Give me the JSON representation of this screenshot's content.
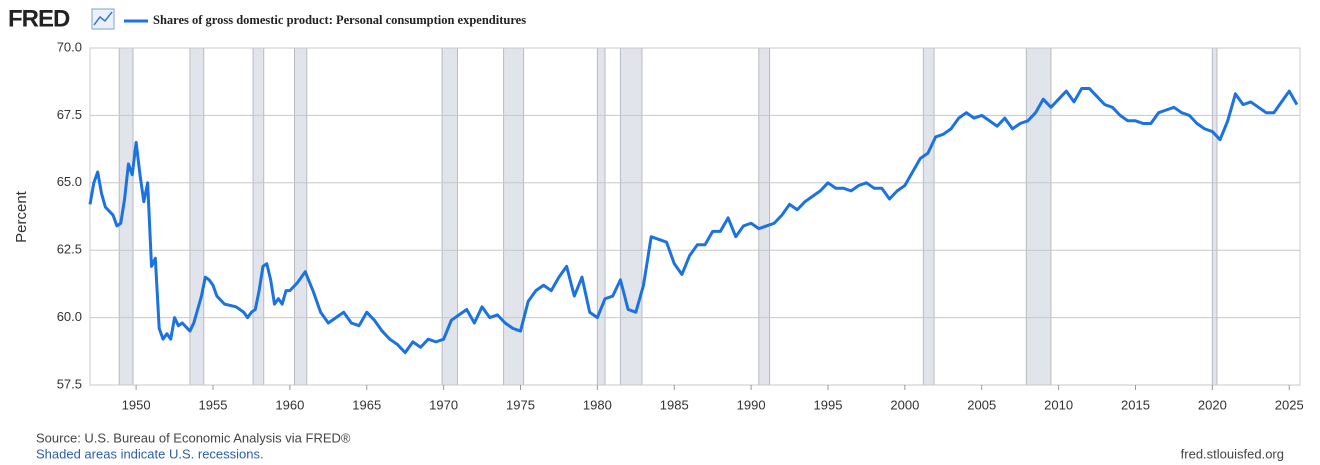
{
  "logo": "FRED",
  "chart_data": {
    "type": "line",
    "series": [
      {
        "name": "Shares of gross domestic product: Personal consumption expenditures",
        "color": "#1c72e0",
        "x": [
          1947,
          1947.25,
          1947.5,
          1947.75,
          1948,
          1948.5,
          1948.75,
          1949,
          1949.25,
          1949.5,
          1949.75,
          1950,
          1950.25,
          1950.5,
          1950.75,
          1951,
          1951.25,
          1951.5,
          1951.75,
          1952,
          1952.25,
          1952.5,
          1952.75,
          1953,
          1953.5,
          1953.75,
          1954.25,
          1954.5,
          1954.75,
          1955,
          1955.25,
          1955.75,
          1956.5,
          1957,
          1957.25,
          1957.5,
          1957.75,
          1958,
          1958.25,
          1958.5,
          1958.75,
          1959,
          1959.25,
          1959.5,
          1959.75,
          1960,
          1960.5,
          1961,
          1961.5,
          1962,
          1962.5,
          1963,
          1963.5,
          1964,
          1964.5,
          1965,
          1965.5,
          1966,
          1966.5,
          1967,
          1967.5,
          1968,
          1968.5,
          1969,
          1969.5,
          1970,
          1970.5,
          1971,
          1971.5,
          1972,
          1972.5,
          1973,
          1973.5,
          1974,
          1974.5,
          1975,
          1975.5,
          1976,
          1976.5,
          1977,
          1977.5,
          1978,
          1978.5,
          1979,
          1979.5,
          1980,
          1980.5,
          1981,
          1981.5,
          1982,
          1982.5,
          1983,
          1983.5,
          1984,
          1984.5,
          1985,
          1985.5,
          1986,
          1986.5,
          1987,
          1987.5,
          1988,
          1988.5,
          1989,
          1989.5,
          1990,
          1990.5,
          1991,
          1991.5,
          1992,
          1992.5,
          1993,
          1993.5,
          1994,
          1994.5,
          1995,
          1995.5,
          1996,
          1996.5,
          1997,
          1997.5,
          1998,
          1998.5,
          1999,
          1999.5,
          2000,
          2000.5,
          2001,
          2001.5,
          2002,
          2002.5,
          2003,
          2003.5,
          2004,
          2004.5,
          2005,
          2005.5,
          2006,
          2006.5,
          2007,
          2007.5,
          2008,
          2008.5,
          2009,
          2009.5,
          2010,
          2010.5,
          2011,
          2011.5,
          2012,
          2012.5,
          2013,
          2013.5,
          2014,
          2014.5,
          2015,
          2015.5,
          2016,
          2016.5,
          2017,
          2017.5,
          2018,
          2018.5,
          2019,
          2019.5,
          2020,
          2020.5,
          2021,
          2021.5,
          2022,
          2022.5,
          2023,
          2023.5,
          2024,
          2024.5,
          2025,
          2025.5
        ],
        "values": [
          64.2,
          65.0,
          65.4,
          64.6,
          64.1,
          63.8,
          63.4,
          63.5,
          64.4,
          65.7,
          65.3,
          66.5,
          65.3,
          64.3,
          65.0,
          61.9,
          62.2,
          59.6,
          59.2,
          59.4,
          59.2,
          60.0,
          59.7,
          59.8,
          59.5,
          59.8,
          60.8,
          61.5,
          61.4,
          61.2,
          60.8,
          60.5,
          60.4,
          60.2,
          60.0,
          60.2,
          60.3,
          61.0,
          61.9,
          62.0,
          61.4,
          60.5,
          60.7,
          60.5,
          61.0,
          61.0,
          61.3,
          61.7,
          61.0,
          60.2,
          59.8,
          60.0,
          60.2,
          59.8,
          59.7,
          60.2,
          59.9,
          59.5,
          59.2,
          59.0,
          58.7,
          59.1,
          58.9,
          59.2,
          59.1,
          59.2,
          59.9,
          60.1,
          60.3,
          59.8,
          60.4,
          60.0,
          60.1,
          59.8,
          59.6,
          59.5,
          60.6,
          61.0,
          61.2,
          61.0,
          61.5,
          61.9,
          60.8,
          61.5,
          60.2,
          60.0,
          60.7,
          60.8,
          61.4,
          60.3,
          60.2,
          61.2,
          63.0,
          62.9,
          62.8,
          62.0,
          61.6,
          62.3,
          62.7,
          62.7,
          63.2,
          63.2,
          63.7,
          63.0,
          63.4,
          63.5,
          63.3,
          63.4,
          63.5,
          63.8,
          64.2,
          64.0,
          64.3,
          64.5,
          64.7,
          65.0,
          64.8,
          64.8,
          64.7,
          64.9,
          65.0,
          64.8,
          64.8,
          64.4,
          64.7,
          64.9,
          65.4,
          65.9,
          66.1,
          66.7,
          66.8,
          67.0,
          67.4,
          67.6,
          67.4,
          67.5,
          67.3,
          67.1,
          67.4,
          67.0,
          67.2,
          67.3,
          67.6,
          68.1,
          67.8,
          68.1,
          68.4,
          68.0,
          68.5,
          68.5,
          68.2,
          67.9,
          67.8,
          67.5,
          67.3,
          67.3,
          67.2,
          67.2,
          67.6,
          67.7,
          67.8,
          67.6,
          67.5,
          67.2,
          67.0,
          66.9,
          66.6,
          67.3,
          68.3,
          67.9,
          68.0,
          67.8,
          67.6,
          67.6,
          68.0,
          68.4,
          67.9
        ]
      }
    ],
    "recessions": [
      [
        1948.9,
        1949.8
      ],
      [
        1953.5,
        1954.4
      ],
      [
        1957.6,
        1958.3
      ],
      [
        1960.3,
        1961.1
      ],
      [
        1969.9,
        1970.9
      ],
      [
        1973.9,
        1975.2
      ],
      [
        1980.0,
        1980.5
      ],
      [
        1981.5,
        1982.9
      ],
      [
        1990.5,
        1991.2
      ],
      [
        2001.2,
        2001.9
      ],
      [
        2007.9,
        2009.5
      ],
      [
        2020.0,
        2020.3
      ]
    ],
    "ylabel": "Percent",
    "xlim": [
      1947,
      2025.7
    ],
    "xticks": [
      1950,
      1955,
      1960,
      1965,
      1970,
      1975,
      1980,
      1985,
      1990,
      1995,
      2000,
      2005,
      2010,
      2015,
      2020,
      2025
    ],
    "ylim": [
      57.5,
      70
    ],
    "yticks": [
      57.5,
      {
        "value": 60,
        "label": "60.0"
      },
      62.5,
      {
        "value": 65,
        "label": "65.0"
      },
      67.5,
      {
        "value": 70,
        "label": "70.0"
      }
    ],
    "grid": true,
    "source": "Source: U.S. Bureau of Economic Analysis via FRED®",
    "note": "Shaded areas indicate U.S. recessions.",
    "site": "fred.stlouisfed.org"
  }
}
